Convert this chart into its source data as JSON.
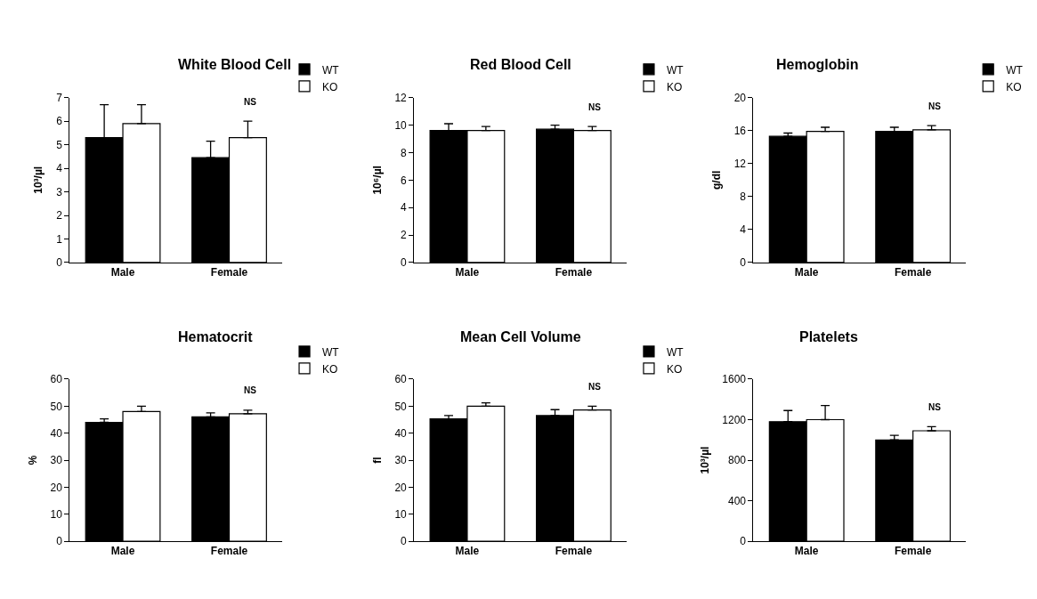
{
  "chart_data": [
    {
      "type": "bar",
      "title": "White Blood Cell",
      "ylabel": "10³/µl",
      "categories": [
        "Male",
        "Female"
      ],
      "ylim": [
        0,
        7
      ],
      "yticks": [
        0,
        1,
        2,
        3,
        4,
        5,
        6,
        7
      ],
      "legend": "top right",
      "annotations": [
        "NS"
      ],
      "series": [
        {
          "name": "WT",
          "color": "#000000",
          "values": [
            5.3,
            4.45
          ],
          "errors": [
            [
              5.3,
              6.7
            ],
            [
              4.45,
              5.15
            ]
          ]
        },
        {
          "name": "KO",
          "color": "#ffffff",
          "values": [
            5.9,
            5.3
          ],
          "errors": [
            [
              5.9,
              6.7
            ],
            [
              5.3,
              6.0
            ]
          ]
        }
      ]
    },
    {
      "type": "bar",
      "title": "Red Blood Cell",
      "ylabel": "10⁶/µl",
      "categories": [
        "Male",
        "Female"
      ],
      "ylim": [
        0,
        12
      ],
      "yticks": [
        0,
        2,
        4,
        6,
        8,
        10,
        12
      ],
      "legend": "top right",
      "annotations": [
        "NS"
      ],
      "series": [
        {
          "name": "WT",
          "color": "#000000",
          "values": [
            9.6,
            9.7
          ],
          "errors": [
            [
              9.6,
              10.1
            ],
            [
              9.7,
              10.0
            ]
          ]
        },
        {
          "name": "KO",
          "color": "#ffffff",
          "values": [
            9.6,
            9.6
          ],
          "errors": [
            [
              9.6,
              9.9
            ],
            [
              9.6,
              9.9
            ]
          ]
        }
      ]
    },
    {
      "type": "bar",
      "title": "Hemoglobin",
      "ylabel": "g/dl",
      "categories": [
        "Male",
        "Female"
      ],
      "ylim": [
        0,
        20
      ],
      "yticks": [
        0,
        4,
        8,
        12,
        16,
        20
      ],
      "legend": "top right",
      "annotations": [
        "NS"
      ],
      "series": [
        {
          "name": "WT",
          "color": "#000000",
          "values": [
            15.3,
            15.9
          ],
          "errors": [
            [
              15.3,
              15.7
            ],
            [
              15.9,
              16.4
            ]
          ]
        },
        {
          "name": "KO",
          "color": "#ffffff",
          "values": [
            15.9,
            16.1
          ],
          "errors": [
            [
              15.9,
              16.4
            ],
            [
              16.1,
              16.6
            ]
          ]
        }
      ]
    },
    {
      "type": "bar",
      "title": "Hematocrit",
      "ylabel": "%",
      "categories": [
        "Male",
        "Female"
      ],
      "ylim": [
        0,
        60
      ],
      "yticks": [
        0,
        10,
        20,
        30,
        40,
        50,
        60
      ],
      "legend": "top right",
      "annotations": [
        "NS"
      ],
      "series": [
        {
          "name": "WT",
          "color": "#000000",
          "values": [
            44,
            46
          ],
          "errors": [
            [
              44,
              45.3
            ],
            [
              46,
              47.5
            ]
          ]
        },
        {
          "name": "KO",
          "color": "#ffffff",
          "values": [
            48,
            47.2
          ],
          "errors": [
            [
              48,
              50
            ],
            [
              47.2,
              48.5
            ]
          ]
        }
      ]
    },
    {
      "type": "bar",
      "title": "Mean Cell Volume",
      "ylabel": "fl",
      "categories": [
        "Male",
        "Female"
      ],
      "ylim": [
        0,
        60
      ],
      "yticks": [
        0,
        10,
        20,
        30,
        40,
        50,
        60
      ],
      "legend": "top right",
      "annotations": [
        "NS"
      ],
      "series": [
        {
          "name": "WT",
          "color": "#000000",
          "values": [
            45.3,
            46.5
          ],
          "errors": [
            [
              45.3,
              46.5
            ],
            [
              46.5,
              48.7
            ]
          ]
        },
        {
          "name": "KO",
          "color": "#ffffff",
          "values": [
            50,
            48.6
          ],
          "errors": [
            [
              50,
              51.2
            ],
            [
              48.6,
              50
            ]
          ]
        }
      ]
    },
    {
      "type": "bar",
      "title": "Platelets",
      "ylabel": "10³/µl",
      "categories": [
        "Male",
        "Female"
      ],
      "ylim": [
        0,
        1600
      ],
      "yticks": [
        0,
        400,
        800,
        1200,
        1600
      ],
      "annotations": [
        "NS"
      ],
      "series": [
        {
          "color": "#000000",
          "values": [
            1180,
            1000
          ],
          "errors": [
            [
              1180,
              1290
            ],
            [
              1000,
              1045
            ]
          ]
        },
        {
          "color": "#ffffff",
          "values": [
            1200,
            1090
          ],
          "errors": [
            [
              1200,
              1340
            ],
            [
              1090,
              1130
            ]
          ]
        }
      ]
    }
  ]
}
